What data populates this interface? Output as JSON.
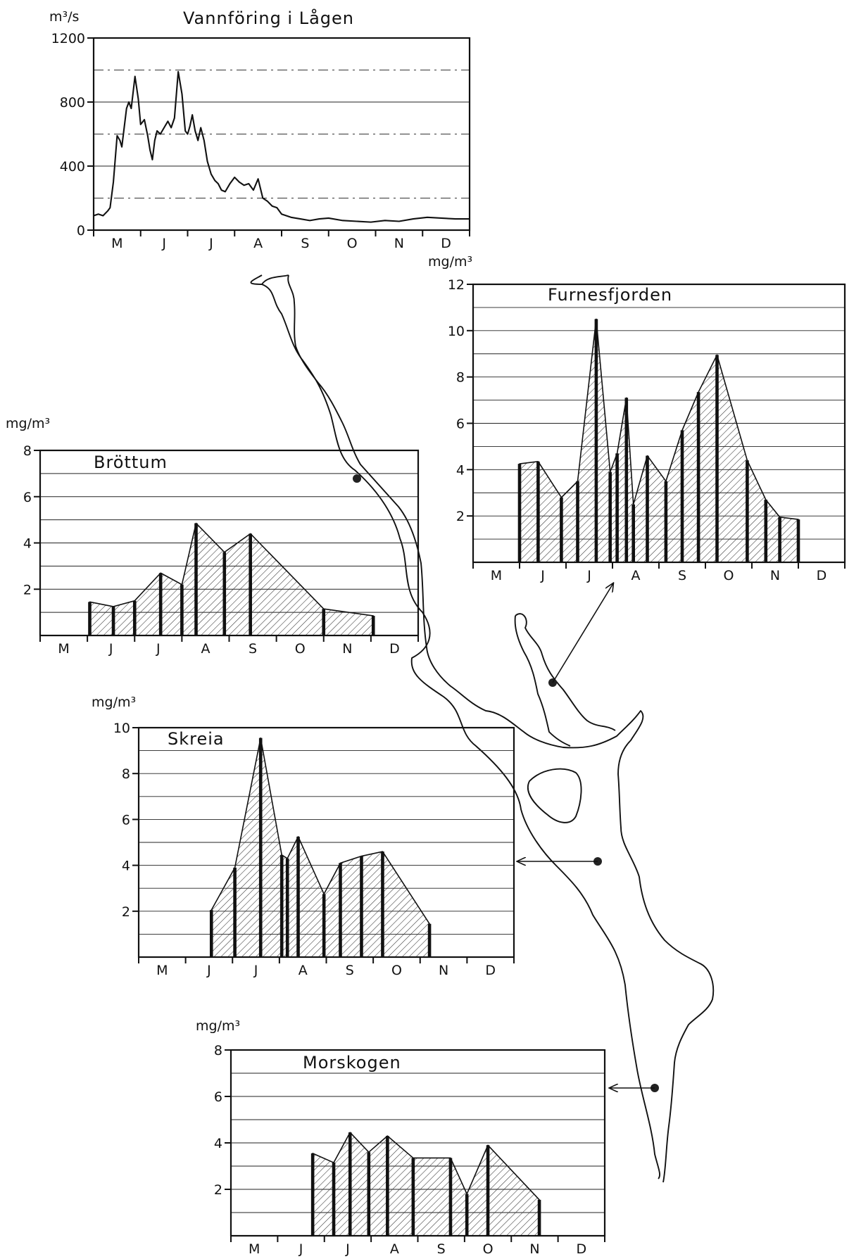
{
  "figure": {
    "map_stations": [
      "Brøttum",
      "Furnesfjorden",
      "Skreia",
      "Morskogen"
    ]
  },
  "chart_data": [
    {
      "id": "flow",
      "type": "line",
      "title": "Vannföring i Lågen",
      "ylabel": "m³/s",
      "xlabel": "",
      "ylim": [
        0,
        1200
      ],
      "yticks": [
        0,
        400,
        800,
        1200
      ],
      "months": [
        "M",
        "J",
        "J",
        "A",
        "S",
        "O",
        "N",
        "D"
      ],
      "grid": true,
      "series": [
        {
          "x": [
            0,
            0.1,
            0.2,
            0.3,
            0.35,
            0.42,
            0.5,
            0.56,
            0.6,
            0.7,
            0.75,
            0.8,
            0.88,
            0.95,
            1.0,
            1.08,
            1.15,
            1.2,
            1.25,
            1.3,
            1.35,
            1.42,
            1.5,
            1.58,
            1.65,
            1.72,
            1.8,
            1.88,
            1.95,
            2.0,
            2.05,
            2.1,
            2.16,
            2.22,
            2.28,
            2.35,
            2.42,
            2.5,
            2.58,
            2.65,
            2.72,
            2.8,
            2.9,
            3.0,
            3.1,
            3.2,
            3.3,
            3.4,
            3.5,
            3.6,
            3.7,
            3.8,
            3.9,
            4.0,
            4.2,
            4.4,
            4.6,
            4.8,
            5.0,
            5.3,
            5.6,
            5.9,
            6.2,
            6.5,
            6.8,
            7.1,
            7.4,
            7.7,
            8.0
          ],
          "y": [
            90,
            100,
            90,
            120,
            140,
            300,
            590,
            560,
            520,
            760,
            800,
            760,
            960,
            820,
            660,
            690,
            590,
            500,
            440,
            560,
            620,
            600,
            640,
            680,
            640,
            700,
            990,
            850,
            620,
            600,
            650,
            720,
            620,
            560,
            640,
            560,
            430,
            350,
            310,
            290,
            250,
            240,
            290,
            330,
            300,
            280,
            290,
            250,
            320,
            200,
            180,
            150,
            140,
            100,
            80,
            70,
            60,
            70,
            75,
            60,
            55,
            50,
            60,
            55,
            70,
            80,
            75,
            70,
            70
          ]
        }
      ]
    },
    {
      "id": "brottum",
      "type": "area",
      "title": "Bröttum",
      "ylabel": "mg/m³",
      "xlabel": "",
      "ylim": [
        0,
        8
      ],
      "yticks": [
        2,
        4,
        6,
        8
      ],
      "months": [
        "M",
        "J",
        "J",
        "A",
        "S",
        "O",
        "N",
        "D"
      ],
      "grid": true,
      "series": [
        {
          "x": [
            1.05,
            1.55,
            2.0,
            2.55,
            3.0,
            3.3,
            3.9,
            4.45,
            6.0,
            7.05
          ],
          "y": [
            1.45,
            1.25,
            1.5,
            2.7,
            2.2,
            4.85,
            3.6,
            4.4,
            1.15,
            0.85
          ]
        }
      ]
    },
    {
      "id": "furnesfjorden",
      "type": "area",
      "title": "Furnesfjorden",
      "ylabel": "mg/m³",
      "xlabel": "",
      "ylim": [
        0,
        12
      ],
      "yticks": [
        2,
        4,
        6,
        8,
        10,
        12
      ],
      "months": [
        "M",
        "J",
        "J",
        "A",
        "S",
        "O",
        "N",
        "D"
      ],
      "grid": true,
      "series": [
        {
          "x": [
            1.0,
            1.4,
            1.9,
            2.25,
            2.65,
            2.95,
            3.1,
            3.3,
            3.45,
            3.75,
            4.15,
            4.5,
            4.85,
            5.25,
            5.9,
            6.3,
            6.6,
            7.0
          ],
          "y": [
            4.25,
            4.35,
            2.8,
            3.5,
            10.5,
            3.9,
            4.7,
            7.1,
            2.5,
            4.6,
            3.5,
            5.7,
            7.35,
            8.95,
            4.4,
            2.7,
            1.95,
            1.85
          ]
        }
      ]
    },
    {
      "id": "skreia",
      "type": "area",
      "title": "Skreia",
      "ylabel": "mg/m³",
      "xlabel": "",
      "ylim": [
        0,
        10
      ],
      "yticks": [
        2,
        4,
        6,
        8,
        10
      ],
      "months": [
        "M",
        "J",
        "J",
        "A",
        "S",
        "O",
        "N",
        "D"
      ],
      "grid": true,
      "series": [
        {
          "x": [
            1.55,
            2.05,
            2.6,
            3.05,
            3.17,
            3.4,
            3.95,
            4.3,
            4.75,
            5.2,
            6.2
          ],
          "y": [
            2.05,
            3.9,
            9.55,
            4.45,
            4.3,
            5.25,
            2.75,
            4.1,
            4.4,
            4.6,
            1.45
          ]
        }
      ]
    },
    {
      "id": "morskogen",
      "type": "area",
      "title": "Morskogen",
      "ylabel": "mg/m³",
      "xlabel": "",
      "ylim": [
        0,
        8
      ],
      "yticks": [
        2,
        4,
        6,
        8
      ],
      "months": [
        "M",
        "J",
        "J",
        "A",
        "S",
        "O",
        "N",
        "D"
      ],
      "grid": true,
      "series": [
        {
          "x": [
            1.75,
            2.2,
            2.55,
            2.95,
            3.35,
            3.9,
            4.7,
            5.05,
            5.5,
            6.6
          ],
          "y": [
            3.55,
            3.15,
            4.45,
            3.6,
            4.3,
            3.35,
            3.35,
            1.8,
            3.9,
            1.55
          ]
        }
      ]
    }
  ]
}
